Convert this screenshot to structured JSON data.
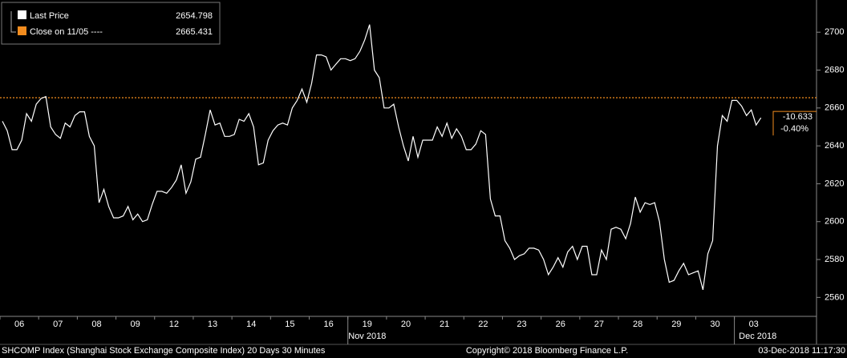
{
  "chart_data": {
    "type": "line",
    "x": [
      0,
      1,
      2,
      3,
      4,
      5,
      6,
      7,
      8,
      9,
      10,
      11,
      12,
      13,
      14,
      15,
      16,
      17,
      18,
      19,
      20,
      21,
      22,
      23,
      24,
      25,
      26,
      27,
      28,
      29,
      30,
      31,
      32,
      33,
      34,
      35,
      36,
      37,
      38,
      39,
      40,
      41,
      42,
      43,
      44,
      45,
      46,
      47,
      48,
      49,
      50,
      51,
      52,
      53,
      54,
      55,
      56,
      57,
      58,
      59,
      60,
      61,
      62,
      63,
      64,
      65,
      66,
      67,
      68,
      69,
      70,
      71,
      72,
      73,
      74,
      75,
      76,
      77,
      78,
      79,
      80,
      81,
      82,
      83,
      84,
      85,
      86,
      87,
      88,
      89,
      90,
      91,
      92,
      93,
      94,
      95,
      96,
      97,
      98,
      99,
      100,
      101,
      102,
      103,
      104,
      105,
      106,
      107,
      108,
      109,
      110,
      111,
      112,
      113,
      114,
      115,
      116,
      117,
      118,
      119,
      120,
      121,
      122,
      123,
      124,
      125,
      126,
      127,
      128,
      129,
      130,
      131,
      132,
      133,
      134,
      135,
      136,
      137,
      138,
      139,
      140,
      141,
      142,
      143,
      144,
      145,
      146,
      147,
      148,
      149,
      150,
      151,
      152,
      153,
      154,
      155,
      156,
      157
    ],
    "series": [
      {
        "name": "Last Price",
        "color": "#ffffff",
        "last": 2654.798,
        "values": [
          2653,
          2648,
          2638,
          2638,
          2643,
          2657,
          2653,
          2662,
          2665,
          2666,
          2650,
          2646,
          2644,
          2652,
          2650,
          2656,
          2658,
          2658,
          2645,
          2640,
          2610,
          2617,
          2608,
          2602,
          2602,
          2603,
          2608,
          2601,
          2604,
          2600,
          2601,
          2609,
          2616,
          2616,
          2615,
          2618,
          2622,
          2630,
          2615,
          2621,
          2633,
          2634,
          2646,
          2659,
          2651,
          2652,
          2645,
          2645,
          2646,
          2654,
          2653,
          2657,
          2650,
          2630,
          2631,
          2643,
          2648,
          2651,
          2652,
          2651,
          2660,
          2664,
          2670,
          2663,
          2673,
          2688,
          2688,
          2687,
          2680,
          2683,
          2686,
          2686,
          2685,
          2686,
          2690,
          2696,
          2704,
          2680,
          2676,
          2660,
          2660,
          2662,
          2650,
          2640,
          2632,
          2645,
          2634,
          2643,
          2643,
          2643,
          2650,
          2645,
          2652,
          2644,
          2649,
          2645,
          2638,
          2638,
          2641,
          2648,
          2646,
          2612,
          2603,
          2603,
          2590,
          2586,
          2580,
          2582,
          2583,
          2586,
          2586,
          2585,
          2580,
          2572,
          2576,
          2581,
          2576,
          2584,
          2587,
          2580,
          2587,
          2587,
          2572,
          2572,
          2585,
          2580,
          2596,
          2597,
          2596,
          2591,
          2599,
          2613,
          2605,
          2610,
          2609,
          2610,
          2600,
          2580,
          2568,
          2569,
          2574,
          2578,
          2572,
          2573,
          2574,
          2564,
          2583,
          2590,
          2640,
          2656,
          2653,
          2664,
          2664,
          2661,
          2656,
          2659,
          2651,
          2654.798
        ]
      }
    ],
    "reference_line": {
      "name": "Close on 11/05 ----",
      "value": 2665.431,
      "color": "#f28c1e"
    },
    "change": -10.633,
    "change_pct": {
      "value": -0.4,
      "label": "-0.40%"
    },
    "xlim": [
      -0.5,
      168.5
    ],
    "xticks": [
      {
        "value": 3.5,
        "label": "06"
      },
      {
        "value": 11.5,
        "label": "07"
      },
      {
        "value": 19.5,
        "label": "08"
      },
      {
        "value": 27.5,
        "label": "09"
      },
      {
        "value": 35.5,
        "label": "12"
      },
      {
        "value": 43.5,
        "label": "13"
      },
      {
        "value": 51.5,
        "label": "14"
      },
      {
        "value": 59.5,
        "label": "15"
      },
      {
        "value": 67.5,
        "label": "16"
      },
      {
        "value": 75.5,
        "label": "19"
      },
      {
        "value": 83.5,
        "label": "20"
      },
      {
        "value": 91.5,
        "label": "21"
      },
      {
        "value": 99.5,
        "label": "22"
      },
      {
        "value": 107.5,
        "label": "23"
      },
      {
        "value": 115.5,
        "label": "26"
      },
      {
        "value": 123.5,
        "label": "27"
      },
      {
        "value": 131.5,
        "label": "28"
      },
      {
        "value": 139.5,
        "label": "29"
      },
      {
        "value": 147.5,
        "label": "30"
      },
      {
        "value": 155.5,
        "label": "03"
      }
    ],
    "month_ticks": [
      {
        "value": 75.5,
        "label": "Nov 2018"
      },
      {
        "value": 155.5,
        "label": "Dec 2018"
      }
    ],
    "ylim": [
      2550,
      2717
    ],
    "yticks": [
      2560,
      2580,
      2600,
      2620,
      2640,
      2660,
      2680,
      2700
    ],
    "footer": {
      "left": "SHCOMP Index (Shanghai Stock Exchange Composite Index) 20 Days 30 Minutes",
      "center": "Copyright© 2018 Bloomberg Finance L.P.",
      "right": "03-Dec-2018 11:17:30"
    }
  }
}
